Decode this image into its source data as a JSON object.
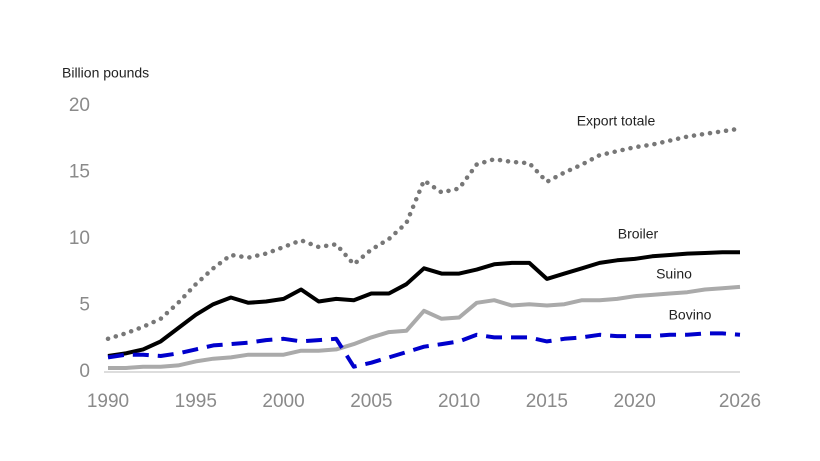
{
  "chart_data": {
    "type": "line",
    "y_label": "Billion pounds",
    "x": [
      1990,
      1991,
      1992,
      1993,
      1994,
      1995,
      1996,
      1997,
      1998,
      1999,
      2000,
      2001,
      2002,
      2003,
      2004,
      2005,
      2006,
      2007,
      2008,
      2009,
      2010,
      2011,
      2012,
      2013,
      2014,
      2015,
      2016,
      2017,
      2018,
      2019,
      2020,
      2021,
      2022,
      2023,
      2024,
      2025,
      2026
    ],
    "xlim": [
      1990,
      2026
    ],
    "xticks": [
      1990,
      1995,
      2000,
      2005,
      2010,
      2015,
      2020,
      2026
    ],
    "ylim": [
      0,
      20
    ],
    "yticks": [
      0,
      5,
      10,
      15,
      20
    ],
    "grid": false,
    "series": [
      {
        "name": "Export totale",
        "color": "#777777",
        "style": "dotted",
        "values": [
          2.5,
          2.9,
          3.4,
          4.0,
          5.2,
          6.6,
          7.8,
          8.8,
          8.6,
          8.9,
          9.4,
          9.9,
          9.4,
          9.6,
          8.1,
          9.2,
          10.0,
          11.2,
          14.4,
          13.5,
          13.8,
          15.6,
          16.0,
          15.8,
          15.7,
          14.3,
          15.0,
          15.6,
          16.3,
          16.6,
          16.9,
          17.1,
          17.4,
          17.7,
          17.9,
          18.1,
          18.3
        ]
      },
      {
        "name": "Broiler",
        "color": "#000000",
        "style": "solid",
        "values": [
          1.2,
          1.4,
          1.7,
          2.3,
          3.3,
          4.3,
          5.1,
          5.6,
          5.2,
          5.3,
          5.5,
          6.2,
          5.3,
          5.5,
          5.4,
          5.9,
          5.9,
          6.6,
          7.8,
          7.4,
          7.4,
          7.7,
          8.1,
          8.2,
          8.2,
          7.0,
          7.4,
          7.8,
          8.2,
          8.4,
          8.5,
          8.7,
          8.8,
          8.9,
          8.95,
          9.0,
          9.0
        ]
      },
      {
        "name": "Suino",
        "color": "#aaaaaa",
        "style": "solid",
        "values": [
          0.3,
          0.3,
          0.4,
          0.4,
          0.5,
          0.8,
          1.0,
          1.1,
          1.3,
          1.3,
          1.3,
          1.6,
          1.6,
          1.7,
          2.1,
          2.6,
          3.0,
          3.1,
          4.6,
          4.0,
          4.1,
          5.2,
          5.4,
          5.0,
          5.1,
          5.0,
          5.1,
          5.4,
          5.4,
          5.5,
          5.7,
          5.8,
          5.9,
          6.0,
          6.2,
          6.3,
          6.4
        ]
      },
      {
        "name": "Bovino",
        "color": "#0000cc",
        "style": "dashed",
        "values": [
          1.1,
          1.3,
          1.3,
          1.2,
          1.4,
          1.7,
          2.0,
          2.1,
          2.2,
          2.4,
          2.5,
          2.3,
          2.4,
          2.5,
          0.4,
          0.7,
          1.1,
          1.5,
          1.9,
          2.1,
          2.3,
          2.8,
          2.6,
          2.6,
          2.6,
          2.3,
          2.5,
          2.6,
          2.8,
          2.7,
          2.7,
          2.7,
          2.8,
          2.8,
          2.9,
          2.9,
          2.8
        ]
      }
    ]
  }
}
